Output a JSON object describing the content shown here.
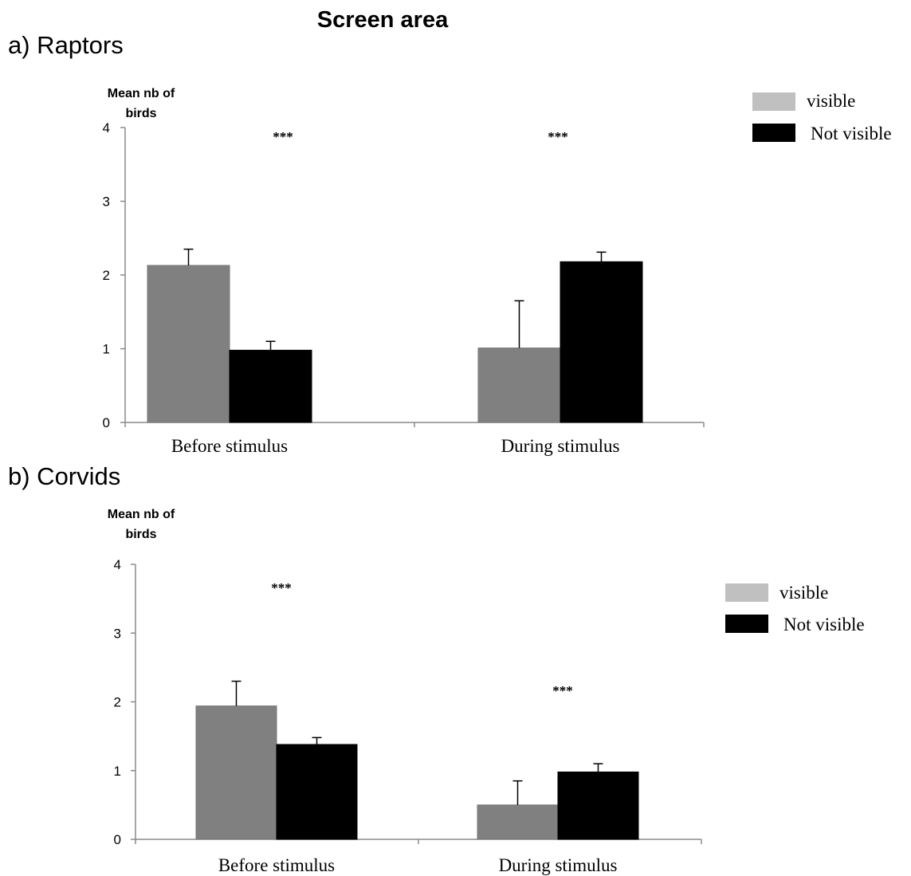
{
  "figure_title": "Screen area",
  "legend_labels": [
    "visible",
    "Not visible"
  ],
  "colors": {
    "visible_bar": "#808080",
    "visible_legend": "#c0c0c0",
    "not_visible": "#000000",
    "axis": "#8a8a8a"
  },
  "chart_data": [
    {
      "type": "bar",
      "panel_label": "a) Raptors",
      "ylabel": "Mean nb of birds",
      "ylim": [
        0,
        4
      ],
      "yticks": [
        0,
        1,
        2,
        3,
        4
      ],
      "categories": [
        "Before stimulus",
        "During stimulus"
      ],
      "series": [
        {
          "name": "visible",
          "values": [
            2.13,
            1.01
          ],
          "errors": [
            0.22,
            0.64
          ]
        },
        {
          "name": "Not visible",
          "values": [
            0.98,
            2.18
          ],
          "errors": [
            0.12,
            0.13
          ]
        }
      ],
      "annotations": [
        "***",
        "***"
      ],
      "legend_position": "top-right",
      "grid": false
    },
    {
      "type": "bar",
      "panel_label": "b) Corvids",
      "ylabel": "Mean nb of birds",
      "ylim": [
        0,
        4
      ],
      "yticks": [
        0,
        1,
        2,
        3,
        4
      ],
      "categories": [
        "Before stimulus",
        "During stimulus"
      ],
      "series": [
        {
          "name": "visible",
          "values": [
            1.94,
            0.5
          ],
          "errors": [
            0.36,
            0.35
          ]
        },
        {
          "name": "Not visible",
          "values": [
            1.38,
            0.98
          ],
          "errors": [
            0.1,
            0.12
          ]
        }
      ],
      "annotations": [
        "***",
        "***"
      ],
      "legend_position": "right",
      "grid": false
    }
  ]
}
